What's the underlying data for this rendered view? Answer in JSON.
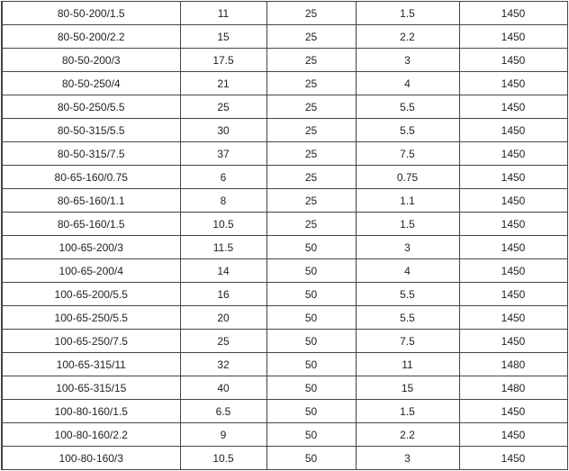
{
  "table": {
    "rows": [
      [
        "80-50-200/1.5",
        "11",
        "25",
        "1.5",
        "1450"
      ],
      [
        "80-50-200/2.2",
        "15",
        "25",
        "2.2",
        "1450"
      ],
      [
        "80-50-200/3",
        "17.5",
        "25",
        "3",
        "1450"
      ],
      [
        "80-50-250/4",
        "21",
        "25",
        "4",
        "1450"
      ],
      [
        "80-50-250/5.5",
        "25",
        "25",
        "5.5",
        "1450"
      ],
      [
        "80-50-315/5.5",
        "30",
        "25",
        "5.5",
        "1450"
      ],
      [
        "80-50-315/7.5",
        "37",
        "25",
        "7.5",
        "1450"
      ],
      [
        "80-65-160/0.75",
        "6",
        "25",
        "0.75",
        "1450"
      ],
      [
        "80-65-160/1.1",
        "8",
        "25",
        "1.1",
        "1450"
      ],
      [
        "80-65-160/1.5",
        "10.5",
        "25",
        "1.5",
        "1450"
      ],
      [
        "100-65-200/3",
        "11.5",
        "50",
        "3",
        "1450"
      ],
      [
        "100-65-200/4",
        "14",
        "50",
        "4",
        "1450"
      ],
      [
        "100-65-200/5.5",
        "16",
        "50",
        "5.5",
        "1450"
      ],
      [
        "100-65-250/5.5",
        "20",
        "50",
        "5.5",
        "1450"
      ],
      [
        "100-65-250/7.5",
        "25",
        "50",
        "7.5",
        "1450"
      ],
      [
        "100-65-315/11",
        "32",
        "50",
        "11",
        "1480"
      ],
      [
        "100-65-315/15",
        "40",
        "50",
        "15",
        "1480"
      ],
      [
        "100-80-160/1.5",
        "6.5",
        "50",
        "1.5",
        "1450"
      ],
      [
        "100-80-160/2.2",
        "9",
        "50",
        "2.2",
        "1450"
      ],
      [
        "100-80-160/3",
        "10.5",
        "50",
        "3",
        "1450"
      ]
    ]
  }
}
